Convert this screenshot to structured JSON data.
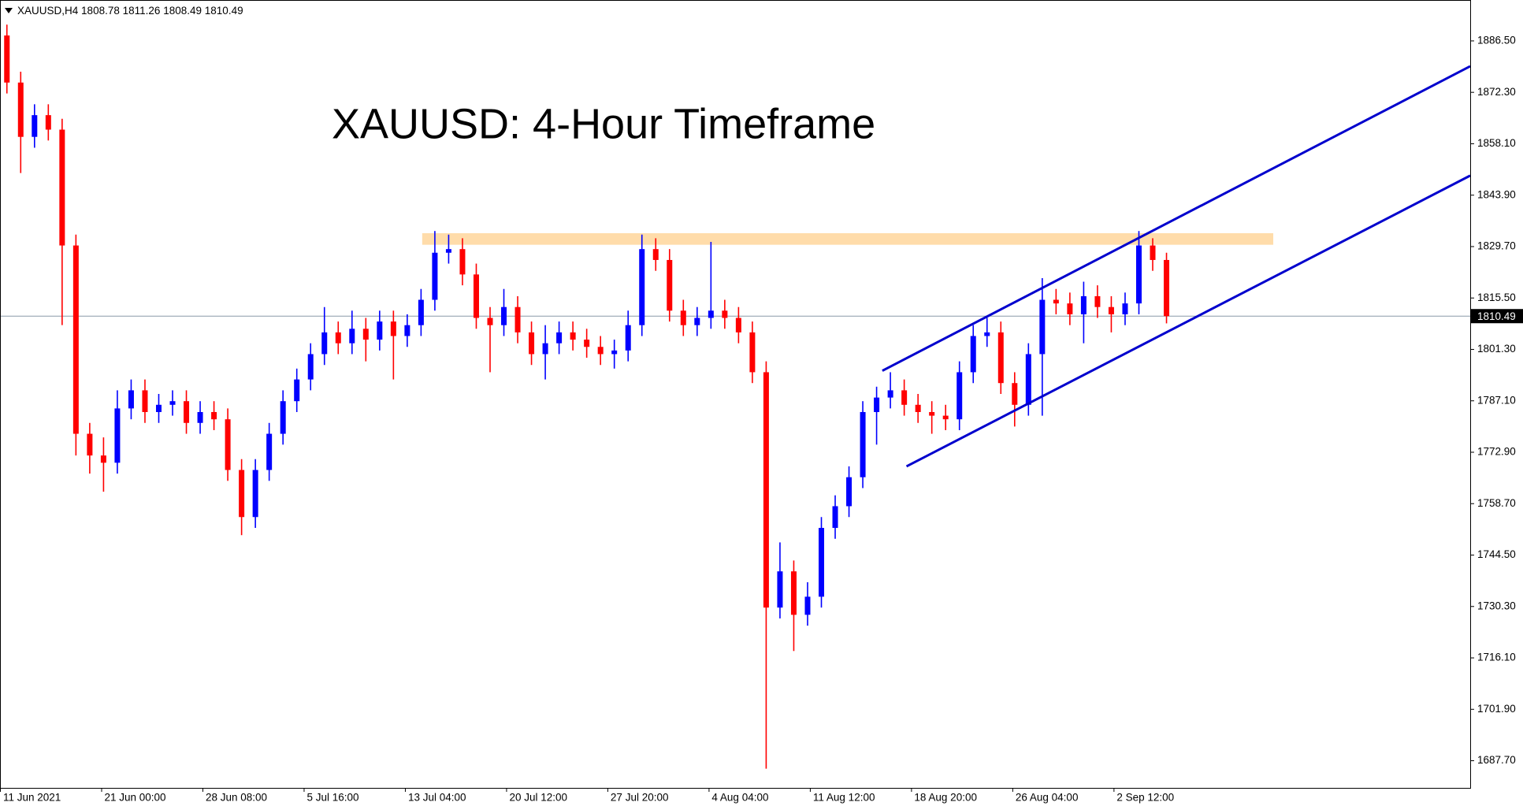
{
  "chart_data": {
    "type": "candlestick",
    "title": "XAUUSD: 4-Hour Timeframe",
    "header": {
      "symbol": "XAUUSD,H4",
      "ohlc": [
        1808.78,
        1811.26,
        1808.49,
        1810.49
      ]
    },
    "x": [
      3,
      9,
      15,
      21,
      27,
      33,
      39,
      45,
      51,
      57,
      63,
      69,
      75,
      81,
      87,
      93,
      99,
      105,
      111,
      117,
      123,
      129,
      135,
      141,
      147,
      153,
      159,
      165,
      171,
      177,
      183,
      189,
      195,
      201,
      207,
      213,
      219,
      225,
      231,
      237,
      243,
      249,
      255,
      261,
      267,
      273,
      279,
      285,
      291,
      297,
      303,
      309,
      315,
      321,
      327,
      333,
      339,
      345,
      351,
      357,
      363,
      369,
      375,
      381,
      387,
      393,
      399,
      405,
      411,
      417,
      423,
      429,
      435,
      441,
      447,
      453,
      459,
      465,
      471,
      477,
      483,
      489,
      495,
      501,
      507
    ],
    "open": [
      1888,
      1875,
      1860,
      1866,
      1862,
      1830,
      1778,
      1772,
      1770,
      1785,
      1790,
      1784,
      1786,
      1787,
      1781,
      1784,
      1782,
      1768,
      1755,
      1768,
      1778,
      1787,
      1793,
      1800,
      1806,
      1803,
      1807,
      1804,
      1809,
      1805,
      1808,
      1815,
      1828,
      1829,
      1822,
      1810,
      1808,
      1813,
      1806,
      1800,
      1803,
      1806,
      1804,
      1802,
      1800,
      1801,
      1808,
      1829,
      1826,
      1812,
      1808,
      1810,
      1812,
      1810,
      1806,
      1795,
      1730,
      1740,
      1728,
      1733,
      1752,
      1758,
      1766,
      1784,
      1788,
      1790,
      1786,
      1784,
      1783,
      1782,
      1795,
      1805,
      1806,
      1792,
      1786,
      1800,
      1815,
      1814,
      1811,
      1816,
      1813,
      1811,
      1814,
      1830,
      1826
    ],
    "high": [
      1891,
      1878,
      1869,
      1869,
      1865,
      1833,
      1781,
      1777,
      1790,
      1793,
      1793,
      1789,
      1790,
      1790,
      1787,
      1787,
      1785,
      1771,
      1771,
      1781,
      1790,
      1796,
      1803,
      1813,
      1809,
      1812,
      1810,
      1812,
      1812,
      1811,
      1818,
      1834,
      1833,
      1832,
      1825,
      1813,
      1818,
      1816,
      1809,
      1808,
      1809,
      1809,
      1807,
      1805,
      1804,
      1812,
      1833,
      1832,
      1829,
      1815,
      1813,
      1831,
      1815,
      1813,
      1809,
      1798,
      1748,
      1743,
      1737,
      1755,
      1761,
      1769,
      1787,
      1791,
      1795,
      1793,
      1789,
      1787,
      1786,
      1798,
      1808,
      1810,
      1809,
      1795,
      1803,
      1821,
      1818,
      1817,
      1820,
      1819,
      1816,
      1817,
      1834,
      1832,
      1828
    ],
    "low": [
      1872,
      1850,
      1857,
      1859,
      1808,
      1772,
      1767,
      1762,
      1767,
      1782,
      1781,
      1781,
      1783,
      1778,
      1778,
      1779,
      1765,
      1750,
      1752,
      1765,
      1775,
      1784,
      1790,
      1797,
      1800,
      1800,
      1798,
      1801,
      1793,
      1802,
      1805,
      1812,
      1825,
      1819,
      1807,
      1795,
      1805,
      1803,
      1797,
      1793,
      1800,
      1801,
      1799,
      1797,
      1796,
      1798,
      1805,
      1823,
      1809,
      1805,
      1805,
      1807,
      1807,
      1803,
      1792,
      1685.5,
      1727,
      1718,
      1725,
      1730,
      1749,
      1755,
      1763,
      1775,
      1785,
      1783,
      1781,
      1778,
      1779,
      1779,
      1792,
      1802,
      1789,
      1780,
      1783,
      1783,
      1811,
      1808,
      1803,
      1810,
      1806,
      1808,
      1811,
      1823,
      1808.49
    ],
    "close": [
      1875,
      1860,
      1866,
      1862,
      1830,
      1778,
      1772,
      1770,
      1785,
      1790,
      1784,
      1786,
      1787,
      1781,
      1784,
      1782,
      1768,
      1755,
      1768,
      1778,
      1787,
      1793,
      1800,
      1806,
      1803,
      1807,
      1804,
      1809,
      1805,
      1808,
      1815,
      1828,
      1829,
      1822,
      1810,
      1808,
      1813,
      1806,
      1800,
      1803,
      1806,
      1804,
      1802,
      1800,
      1801,
      1808,
      1829,
      1826,
      1812,
      1808,
      1810,
      1812,
      1810,
      1806,
      1795,
      1730,
      1740,
      1728,
      1733,
      1752,
      1758,
      1766,
      1784,
      1788,
      1790,
      1786,
      1784,
      1783,
      1782,
      1795,
      1805,
      1806,
      1792,
      1786,
      1800,
      1815,
      1814,
      1811,
      1816,
      1813,
      1811,
      1814,
      1830,
      1826,
      1810.49
    ],
    "up_color": "#0000ff",
    "down_color": "#ff0000",
    "xlim": [
      0,
      639
    ],
    "ylim": [
      1680.2,
      1897.8
    ],
    "xticks": [
      {
        "value": 0,
        "label": "11 Jun 2021"
      },
      {
        "value": 44,
        "label": "21 Jun 00:00"
      },
      {
        "value": 88,
        "label": "28 Jun 08:00"
      },
      {
        "value": 132,
        "label": "5 Jul 16:00"
      },
      {
        "value": 176,
        "label": "13 Jul 04:00"
      },
      {
        "value": 220,
        "label": "20 Jul 12:00"
      },
      {
        "value": 264,
        "label": "27 Jul 20:00"
      },
      {
        "value": 308,
        "label": "4 Aug 04:00"
      },
      {
        "value": 352,
        "label": "11 Aug 12:00"
      },
      {
        "value": 396,
        "label": "18 Aug 20:00"
      },
      {
        "value": 440,
        "label": "26 Aug 04:00"
      },
      {
        "value": 484,
        "label": "2 Sep 12:00"
      }
    ],
    "yticks": [
      {
        "value": 1886.5,
        "label": "1886.50"
      },
      {
        "value": 1872.3,
        "label": "1872.30"
      },
      {
        "value": 1858.1,
        "label": "1858.10"
      },
      {
        "value": 1843.9,
        "label": "1843.90"
      },
      {
        "value": 1829.7,
        "label": "1829.70"
      },
      {
        "value": 1815.5,
        "label": "1815.50"
      },
      {
        "value": 1801.3,
        "label": "1801.30"
      },
      {
        "value": 1787.1,
        "label": "1787.10"
      },
      {
        "value": 1772.9,
        "label": "1772.90"
      },
      {
        "value": 1758.7,
        "label": "1758.70"
      },
      {
        "value": 1744.5,
        "label": "1744.50"
      },
      {
        "value": 1730.3,
        "label": "1730.30"
      },
      {
        "value": 1716.1,
        "label": "1716.10"
      },
      {
        "value": 1701.9,
        "label": "1701.90"
      },
      {
        "value": 1687.7,
        "label": "1687.70"
      }
    ],
    "current_price": 1810.49,
    "current_price_color": "#8a9aa8",
    "resistance_zone": {
      "x": [
        183.5,
        553.4
      ],
      "y": [
        1830.2,
        1833.4
      ],
      "color": "#ffdcaa"
    },
    "channel": {
      "color": "#0000cd",
      "lines": [
        {
          "x": [
            383.5,
            639
          ],
          "y": [
            1795.4,
            1879.5
          ]
        },
        {
          "x": [
            394,
            639
          ],
          "y": [
            1769.0,
            1849.3
          ]
        }
      ]
    }
  }
}
